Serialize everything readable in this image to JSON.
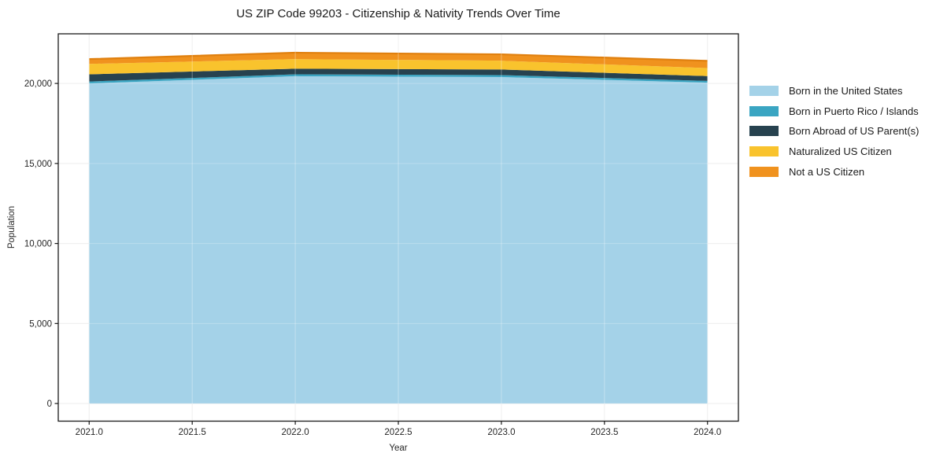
{
  "title": "US ZIP Code 99203 - Citizenship & Nativity Trends Over Time",
  "chart_data": {
    "type": "area",
    "stacked": true,
    "title": "US ZIP Code 99203 - Citizenship & Nativity Trends Over Time",
    "xlabel": "Year",
    "ylabel": "Population",
    "x": [
      2021,
      2022,
      2023,
      2024
    ],
    "series": [
      {
        "name": "Born in the United States",
        "color": "#a4d2e8",
        "values": [
          20000,
          20450,
          20400,
          20050
        ]
      },
      {
        "name": "Born in Puerto Rico / Islands",
        "color": "#3aa5c2",
        "values": [
          120,
          120,
          120,
          110
        ]
      },
      {
        "name": "Born Abroad of US Parent(s)",
        "color": "#27424f",
        "values": [
          450,
          350,
          350,
          300
        ]
      },
      {
        "name": "Naturalized US Citizen",
        "color": "#f9c32d",
        "values": [
          650,
          600,
          550,
          500
        ]
      },
      {
        "name": "Not a US Citizen",
        "color": "#f0921e",
        "values": [
          300,
          400,
          400,
          450
        ]
      }
    ],
    "outer_edge_color": "#e0800f",
    "xticks": [
      2021.0,
      2021.5,
      2022.0,
      2022.5,
      2023.0,
      2023.5,
      2024.0
    ],
    "xtick_labels": [
      "2021.0",
      "2021.5",
      "2022.0",
      "2022.5",
      "2023.0",
      "2023.5",
      "2024.0"
    ],
    "yticks": [
      0,
      5000,
      10000,
      15000,
      20000
    ],
    "ytick_labels": [
      "0",
      "5,000",
      "10,000",
      "15,000",
      "20,000"
    ],
    "xlim": [
      2020.85,
      2024.15
    ],
    "ylim": [
      -1100,
      23100
    ],
    "grid": true,
    "grid_color": "#e9e9e9",
    "spine_color": "#1a1a1a",
    "tick_text_color": "#262626",
    "legend_position": "right-outside"
  }
}
